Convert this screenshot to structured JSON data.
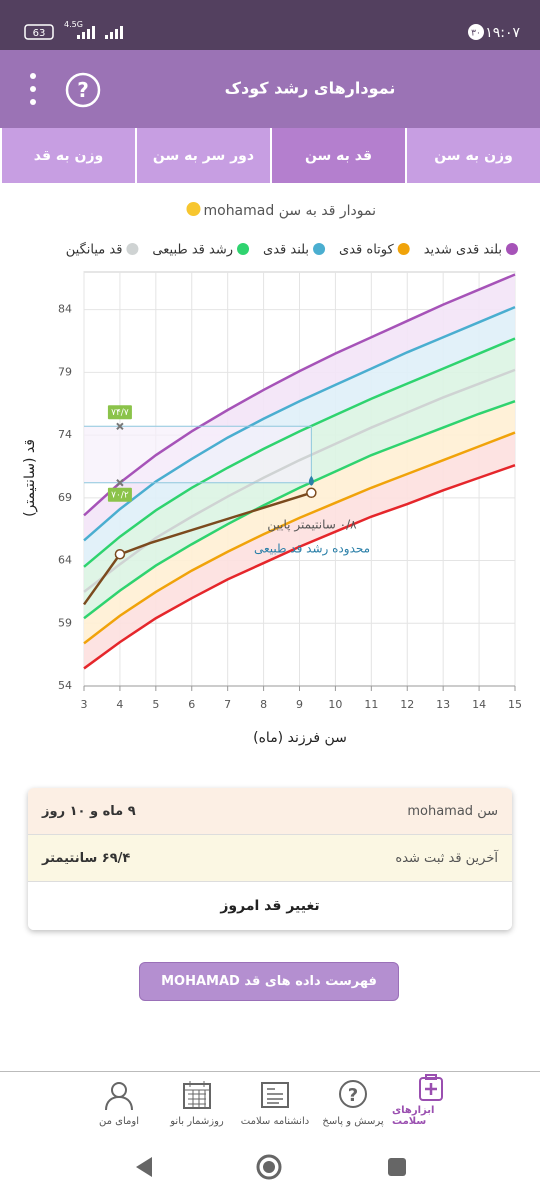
{
  "status_bar": {
    "time": "۱۹:۰۷",
    "notifications": "۳۰",
    "battery": "63",
    "network": "4.5G"
  },
  "header": {
    "title": "نمودارهای رشد کودک"
  },
  "tabs": {
    "items": [
      "وزن به سن",
      "قد به سن",
      "دور سر به سن",
      "وزن به قد"
    ],
    "active": 1
  },
  "chart_data": {
    "type": "line",
    "title": "نمودار قد به سن mohamad",
    "x_label": "سن فرزند (ماه)",
    "y_label": "قد (سانتیمتر)",
    "x": [
      3,
      4,
      5,
      6,
      7,
      8,
      9,
      10,
      11,
      12,
      13,
      14,
      15
    ],
    "series": [
      {
        "name": "بلند قدی شدید",
        "color": "#a653b8",
        "values": [
          67.6,
          70.2,
          72.4,
          74.3,
          76.0,
          77.6,
          79.1,
          80.5,
          81.8,
          83.1,
          84.4,
          85.6,
          86.8
        ]
      },
      {
        "name": "کوتاه قدی",
        "color": "#f0a30a",
        "values": [
          57.4,
          59.6,
          61.5,
          63.2,
          64.7,
          66.1,
          67.4,
          68.6,
          69.8,
          70.9,
          72.0,
          73.1,
          74.2
        ]
      },
      {
        "name": "بلند قدی",
        "color": "#4aaed0",
        "values": [
          65.6,
          68.1,
          70.3,
          72.1,
          73.8,
          75.3,
          76.7,
          78.0,
          79.3,
          80.6,
          81.8,
          83.0,
          84.2
        ]
      },
      {
        "name": "رشد قد طبیعی",
        "color": "#2fd36f",
        "values": [
          63.5,
          65.9,
          68.0,
          69.8,
          71.4,
          72.9,
          74.3,
          75.6,
          76.9,
          78.1,
          79.3,
          80.5,
          81.7
        ]
      },
      {
        "name": "قد میانگین",
        "color": "#cfd3d3",
        "values": [
          61.5,
          63.7,
          65.8,
          67.5,
          69.1,
          70.6,
          72.0,
          73.3,
          74.6,
          75.8,
          77.0,
          78.1,
          79.2
        ]
      },
      {
        "color": "#2fd36f",
        "values": [
          59.4,
          61.6,
          63.6,
          65.3,
          66.9,
          68.4,
          69.8,
          71.1,
          72.4,
          73.5,
          74.6,
          75.7,
          76.7
        ]
      },
      {
        "color": "#e5262b",
        "values": [
          55.4,
          57.5,
          59.4,
          61.0,
          62.5,
          63.8,
          65.1,
          66.3,
          67.5,
          68.5,
          69.6,
          70.6,
          71.6
        ]
      },
      {
        "color": "#7b4a1e",
        "x": [
          3,
          4,
          4.85,
          9.33
        ],
        "values": [
          60.5,
          64.5,
          65.4,
          69.4
        ]
      }
    ],
    "xlim": [
      3,
      15
    ],
    "xticks": [
      3,
      4,
      5,
      6,
      7,
      8,
      9,
      10,
      11,
      12,
      13,
      14,
      15
    ],
    "ylim": [
      54,
      87
    ],
    "yticks": [
      54,
      59,
      64,
      69,
      74,
      79,
      84
    ],
    "grid": true,
    "normal_range": {
      "x": 9.33,
      "low": 70.2,
      "high": 74.7,
      "low_label": "۷۰/۲",
      "high_label": "۷۴/۷",
      "label_x": 4
    },
    "annotation": [
      "۰/۸ سانتیمتر پایین",
      "محدوده رشد قد طبیعی"
    ]
  },
  "info_card": {
    "rows": [
      {
        "label": "سن mohamad",
        "value": "۹ ماه و ۱۰ روز"
      },
      {
        "label": "آخرین قد ثبت شده",
        "value": "۶۹/۴ سانتیمتر"
      }
    ],
    "action": "تغییر قد امروز"
  },
  "list_button": "فهرست داده های قد MOHAMAD",
  "bottom_nav": {
    "items": [
      "ابزارهای سلامت",
      "پرسش و پاسخ",
      "دانشنامه سلامت",
      "روزشمار بانو",
      "اومای من"
    ],
    "active": 0
  }
}
